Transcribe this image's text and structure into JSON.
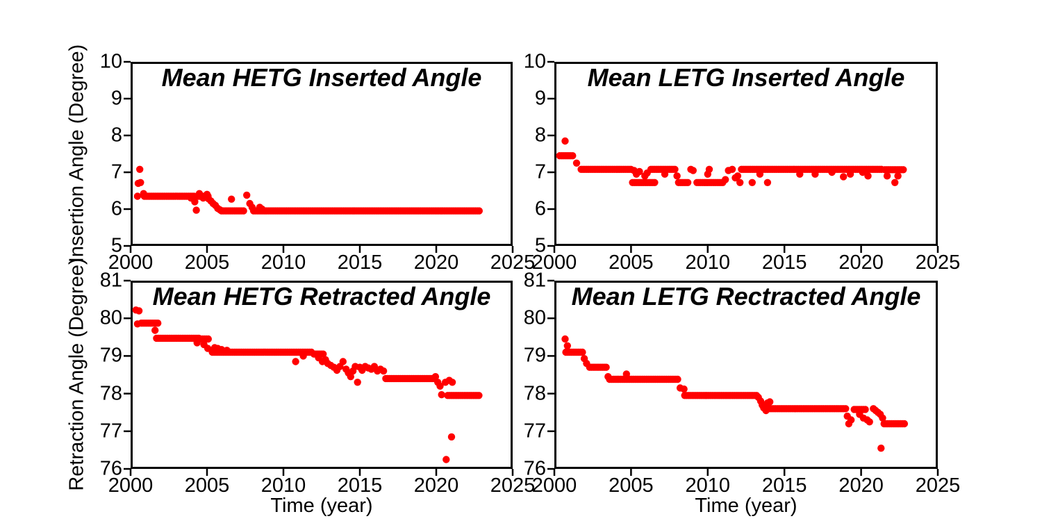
{
  "figure": {
    "background": "#ffffff",
    "axis_color": "#000000"
  },
  "axes_labels": {
    "time": "Time (year)",
    "insertion": "Insertion Angle (Degree)",
    "retraction": "Retraction Angle (Degree)"
  },
  "chart_data": [
    {
      "id": "hetg-inserted",
      "type": "scatter",
      "title": "Mean HETG Inserted Angle",
      "ylabel": "Insertion Angle (Degree)",
      "xlabel": "",
      "xlim": [
        2000,
        2025
      ],
      "ylim": [
        5,
        10
      ],
      "x_ticks": [
        2000,
        2005,
        2010,
        2015,
        2020,
        2025
      ],
      "y_ticks": [
        5,
        6,
        7,
        8,
        9,
        10
      ],
      "marker_color": "#ff0000",
      "grid": false,
      "legend": null,
      "runs": [
        [
          2000.9,
          2004.15,
          6.35
        ],
        [
          2004.35,
          2005.15,
          6.35
        ],
        [
          2005.95,
          2007.45,
          5.95
        ],
        [
          2008.05,
          2022.85,
          5.95
        ]
      ],
      "points": [
        [
          2000.45,
          6.35
        ],
        [
          2000.5,
          6.7
        ],
        [
          2000.65,
          6.72
        ],
        [
          2000.6,
          7.08
        ],
        [
          2000.85,
          6.42
        ],
        [
          2003.95,
          6.3
        ],
        [
          2004.2,
          6.2
        ],
        [
          2004.3,
          5.97
        ],
        [
          2004.5,
          6.42
        ],
        [
          2004.75,
          6.3
        ],
        [
          2005.0,
          6.4
        ],
        [
          2005.1,
          6.28
        ],
        [
          2005.25,
          6.22
        ],
        [
          2005.4,
          6.15
        ],
        [
          2005.55,
          6.1
        ],
        [
          2005.7,
          6.02
        ],
        [
          2005.85,
          5.98
        ],
        [
          2006.6,
          6.27
        ],
        [
          2007.6,
          6.38
        ],
        [
          2007.8,
          6.15
        ],
        [
          2007.95,
          6.05
        ],
        [
          2008.45,
          6.05
        ],
        [
          2008.6,
          6.0
        ]
      ]
    },
    {
      "id": "letg-inserted",
      "type": "scatter",
      "title": "Mean LETG Inserted Angle",
      "ylabel": "Insertion Angle (Degree)",
      "xlabel": "",
      "xlim": [
        2000,
        2025
      ],
      "ylim": [
        5,
        10
      ],
      "x_ticks": [
        2000,
        2005,
        2010,
        2015,
        2020,
        2025
      ],
      "y_ticks": [
        5,
        6,
        7,
        8,
        9,
        10
      ],
      "marker_color": "#ff0000",
      "grid": false,
      "legend": null,
      "runs": [
        [
          2000.35,
          2001.2,
          7.45
        ],
        [
          2001.75,
          2005.05,
          7.08
        ],
        [
          2005.1,
          2006.6,
          6.72
        ],
        [
          2006.3,
          2007.95,
          7.08
        ],
        [
          2008.1,
          2008.8,
          6.72
        ],
        [
          2009.3,
          2011.05,
          6.72
        ],
        [
          2012.2,
          2021.4,
          7.08
        ],
        [
          2021.55,
          2022.85,
          7.07
        ]
      ],
      "points": [
        [
          2000.7,
          7.85
        ],
        [
          2001.45,
          7.25
        ],
        [
          2005.2,
          7.05
        ],
        [
          2005.35,
          6.95
        ],
        [
          2005.55,
          7.02
        ],
        [
          2005.9,
          6.9
        ],
        [
          2006.05,
          6.98
        ],
        [
          2007.2,
          6.95
        ],
        [
          2008.0,
          6.9
        ],
        [
          2008.9,
          7.08
        ],
        [
          2009.05,
          7.05
        ],
        [
          2010.0,
          6.95
        ],
        [
          2010.1,
          7.08
        ],
        [
          2011.15,
          6.8
        ],
        [
          2011.35,
          7.05
        ],
        [
          2011.6,
          7.08
        ],
        [
          2011.8,
          6.85
        ],
        [
          2011.95,
          6.9
        ],
        [
          2012.1,
          6.72
        ],
        [
          2012.9,
          6.72
        ],
        [
          2013.4,
          6.95
        ],
        [
          2013.9,
          6.72
        ],
        [
          2016.0,
          6.95
        ],
        [
          2017.0,
          6.95
        ],
        [
          2018.1,
          7.0
        ],
        [
          2018.85,
          6.88
        ],
        [
          2019.3,
          6.95
        ],
        [
          2020.1,
          7.0
        ],
        [
          2020.45,
          6.9
        ],
        [
          2021.7,
          6.9
        ],
        [
          2022.2,
          6.72
        ],
        [
          2022.4,
          6.9
        ]
      ]
    },
    {
      "id": "hetg-retracted",
      "type": "scatter",
      "title": "Mean HETG Retracted Angle",
      "ylabel": "Retraction Angle (Degree)",
      "xlabel": "Time (year)",
      "xlim": [
        2000,
        2025
      ],
      "ylim": [
        76,
        81
      ],
      "x_ticks": [
        2000,
        2005,
        2010,
        2015,
        2020,
        2025
      ],
      "y_ticks": [
        76,
        77,
        78,
        79,
        80,
        81
      ],
      "marker_color": "#ff0000",
      "grid": false,
      "legend": null,
      "runs": [
        [
          2000.7,
          2001.85,
          79.87
        ],
        [
          2001.7,
          2004.5,
          79.47
        ],
        [
          2004.6,
          2005.15,
          79.45
        ],
        [
          2005.35,
          2011.9,
          79.1
        ],
        [
          2012.0,
          2012.6,
          79.05
        ],
        [
          2016.7,
          2019.9,
          78.4
        ],
        [
          2020.75,
          2022.85,
          77.95
        ]
      ],
      "points": [
        [
          2000.35,
          80.22
        ],
        [
          2000.55,
          80.2
        ],
        [
          2000.45,
          79.85
        ],
        [
          2001.6,
          79.68
        ],
        [
          2004.35,
          79.35
        ],
        [
          2004.8,
          79.3
        ],
        [
          2005.05,
          79.2
        ],
        [
          2005.5,
          79.22
        ],
        [
          2005.7,
          79.2
        ],
        [
          2005.95,
          79.17
        ],
        [
          2006.3,
          79.15
        ],
        [
          2010.8,
          78.85
        ],
        [
          2011.3,
          79.0
        ],
        [
          2012.3,
          78.95
        ],
        [
          2012.55,
          78.85
        ],
        [
          2012.75,
          78.9
        ],
        [
          2012.9,
          78.8
        ],
        [
          2013.1,
          78.75
        ],
        [
          2013.3,
          78.7
        ],
        [
          2013.5,
          78.62
        ],
        [
          2013.7,
          78.72
        ],
        [
          2013.9,
          78.85
        ],
        [
          2014.1,
          78.65
        ],
        [
          2014.25,
          78.55
        ],
        [
          2014.4,
          78.45
        ],
        [
          2014.55,
          78.6
        ],
        [
          2014.7,
          78.72
        ],
        [
          2014.85,
          78.3
        ],
        [
          2015.0,
          78.7
        ],
        [
          2015.15,
          78.62
        ],
        [
          2015.35,
          78.72
        ],
        [
          2015.55,
          78.68
        ],
        [
          2015.75,
          78.65
        ],
        [
          2015.95,
          78.72
        ],
        [
          2016.15,
          78.6
        ],
        [
          2016.35,
          78.65
        ],
        [
          2016.55,
          78.6
        ],
        [
          2019.95,
          78.45
        ],
        [
          2020.1,
          78.3
        ],
        [
          2020.25,
          78.2
        ],
        [
          2020.35,
          77.97
        ],
        [
          2020.6,
          78.3
        ],
        [
          2020.85,
          78.35
        ],
        [
          2021.05,
          78.3
        ],
        [
          2020.65,
          76.25
        ],
        [
          2021.0,
          76.85
        ]
      ]
    },
    {
      "id": "letg-retracted",
      "type": "scatter",
      "title": "Mean LETG Rectracted Angle",
      "ylabel": "Retraction Angle (Degree)",
      "xlabel": "Time (year)",
      "xlim": [
        2000,
        2025
      ],
      "ylim": [
        76,
        81
      ],
      "x_ticks": [
        2000,
        2005,
        2010,
        2015,
        2020,
        2025
      ],
      "y_ticks": [
        76,
        77,
        78,
        79,
        80,
        81
      ],
      "marker_color": "#ff0000",
      "grid": false,
      "legend": null,
      "runs": [
        [
          2000.75,
          2001.9,
          79.1
        ],
        [
          2002.3,
          2003.45,
          78.7
        ],
        [
          2003.6,
          2008.1,
          78.38
        ],
        [
          2008.5,
          2013.2,
          77.95
        ],
        [
          2013.95,
          2019.0,
          77.6
        ],
        [
          2019.55,
          2020.3,
          77.58
        ],
        [
          2021.5,
          2022.85,
          77.2
        ]
      ],
      "points": [
        [
          2000.7,
          79.45
        ],
        [
          2000.85,
          79.27
        ],
        [
          2001.95,
          78.93
        ],
        [
          2002.1,
          78.8
        ],
        [
          2003.5,
          78.45
        ],
        [
          2004.7,
          78.52
        ],
        [
          2008.2,
          78.15
        ],
        [
          2008.45,
          78.12
        ],
        [
          2013.3,
          77.9
        ],
        [
          2013.45,
          77.8
        ],
        [
          2013.55,
          77.7
        ],
        [
          2013.65,
          77.62
        ],
        [
          2013.8,
          77.55
        ],
        [
          2013.9,
          77.75
        ],
        [
          2014.05,
          77.78
        ],
        [
          2019.1,
          77.4
        ],
        [
          2019.2,
          77.2
        ],
        [
          2019.35,
          77.3
        ],
        [
          2019.9,
          77.45
        ],
        [
          2020.15,
          77.35
        ],
        [
          2020.4,
          77.3
        ],
        [
          2020.55,
          77.25
        ],
        [
          2020.8,
          77.6
        ],
        [
          2020.95,
          77.55
        ],
        [
          2021.1,
          77.5
        ],
        [
          2021.25,
          77.45
        ],
        [
          2021.4,
          77.35
        ],
        [
          2021.3,
          76.55
        ]
      ]
    }
  ]
}
